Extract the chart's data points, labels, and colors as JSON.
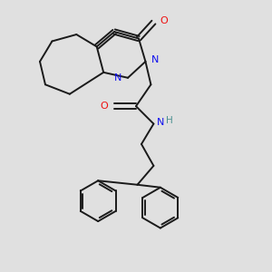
{
  "bg_color": "#e0e0e0",
  "bond_color": "#1a1a1a",
  "N_color": "#1010ee",
  "O_color": "#ee1010",
  "H_color": "#4a9090",
  "figsize": [
    3.0,
    3.0
  ],
  "dpi": 100,
  "xlim": [
    0,
    10
  ],
  "ylim": [
    0,
    10
  ]
}
